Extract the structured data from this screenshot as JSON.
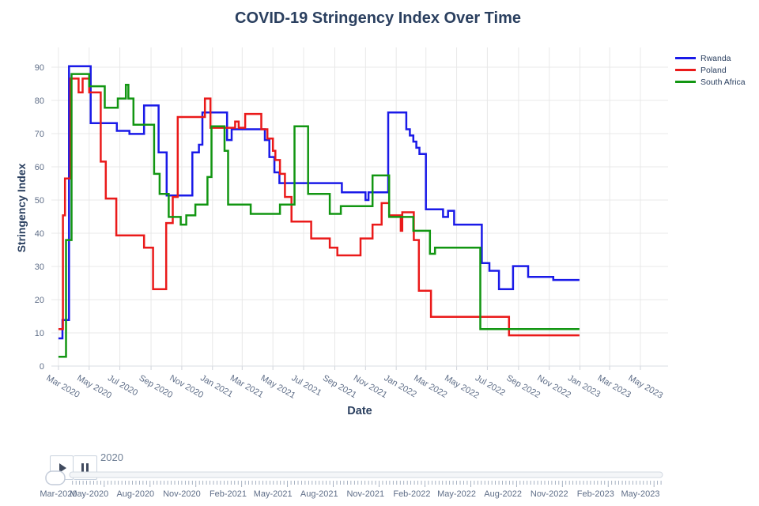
{
  "chart_data": {
    "type": "line",
    "line_shape": "step-after",
    "title": "COVID-19 Stringency Index Over Time",
    "xlabel": "Date",
    "ylabel": "Stringency Index",
    "x_range": [
      "2020-02-16",
      "2023-06-25"
    ],
    "ylim": [
      0,
      95
    ],
    "y_ticks": [
      0,
      10,
      20,
      30,
      40,
      50,
      60,
      70,
      80,
      90
    ],
    "x_tick_labels": [
      "Mar 2020",
      "May 2020",
      "Jul 2020",
      "Sep 2020",
      "Nov 2020",
      "Jan 2021",
      "Mar 2021",
      "May 2021",
      "Jul 2021",
      "Sep 2021",
      "Nov 2021",
      "Jan 2022",
      "Mar 2022",
      "May 2022",
      "Jul 2022",
      "Sep 2022",
      "Nov 2022",
      "Jan 2023",
      "Mar 2023",
      "May 2023"
    ],
    "grid": true,
    "legend_position": "top-right",
    "series": [
      {
        "name": "Rwanda",
        "color": "#1a1ae8",
        "points": [
          [
            "2020-03-01",
            8.33
          ],
          [
            "2020-03-09",
            13.89
          ],
          [
            "2020-03-22",
            90.28
          ],
          [
            "2020-05-04",
            73.15
          ],
          [
            "2020-06-25",
            70.83
          ],
          [
            "2020-07-20",
            69.91
          ],
          [
            "2020-08-18",
            78.47
          ],
          [
            "2020-09-16",
            64.35
          ],
          [
            "2020-10-02",
            51.39
          ],
          [
            "2020-11-22",
            64.35
          ],
          [
            "2020-12-05",
            66.67
          ],
          [
            "2020-12-12",
            76.39
          ],
          [
            "2021-01-30",
            68.06
          ],
          [
            "2021-02-08",
            71.3
          ],
          [
            "2021-04-15",
            68.06
          ],
          [
            "2021-04-24",
            62.96
          ],
          [
            "2021-05-04",
            58.33
          ],
          [
            "2021-05-14",
            55.09
          ],
          [
            "2021-09-15",
            52.31
          ],
          [
            "2021-11-01",
            50.0
          ],
          [
            "2021-11-07",
            52.31
          ],
          [
            "2021-12-16",
            76.39
          ],
          [
            "2022-01-21",
            71.3
          ],
          [
            "2022-01-28",
            69.44
          ],
          [
            "2022-02-04",
            67.59
          ],
          [
            "2022-02-10",
            65.74
          ],
          [
            "2022-02-16",
            63.89
          ],
          [
            "2022-03-01",
            47.22
          ],
          [
            "2022-04-04",
            44.91
          ],
          [
            "2022-04-14",
            46.76
          ],
          [
            "2022-04-26",
            42.59
          ],
          [
            "2022-06-20",
            31.02
          ],
          [
            "2022-07-05",
            28.7
          ],
          [
            "2022-07-24",
            23.15
          ],
          [
            "2022-08-21",
            30.09
          ],
          [
            "2022-09-20",
            26.85
          ],
          [
            "2022-11-09",
            25.93
          ],
          [
            "2022-12-31",
            25.93
          ]
        ]
      },
      {
        "name": "Poland",
        "color": "#ea1a1a",
        "points": [
          [
            "2020-03-01",
            11.11
          ],
          [
            "2020-03-10",
            45.37
          ],
          [
            "2020-03-14",
            56.48
          ],
          [
            "2020-03-25",
            86.57
          ],
          [
            "2020-04-10",
            82.41
          ],
          [
            "2020-04-18",
            86.57
          ],
          [
            "2020-05-01",
            82.41
          ],
          [
            "2020-05-24",
            61.57
          ],
          [
            "2020-06-03",
            50.46
          ],
          [
            "2020-06-24",
            39.35
          ],
          [
            "2020-08-18",
            35.65
          ],
          [
            "2020-09-05",
            23.15
          ],
          [
            "2020-10-01",
            43.06
          ],
          [
            "2020-10-14",
            50.93
          ],
          [
            "2020-10-24",
            75.0
          ],
          [
            "2020-12-17",
            80.56
          ],
          [
            "2020-12-28",
            71.76
          ],
          [
            "2021-02-15",
            73.61
          ],
          [
            "2021-02-22",
            71.76
          ],
          [
            "2021-03-07",
            75.93
          ],
          [
            "2021-04-08",
            71.3
          ],
          [
            "2021-04-20",
            68.52
          ],
          [
            "2021-05-01",
            64.81
          ],
          [
            "2021-05-06",
            62.04
          ],
          [
            "2021-05-15",
            57.87
          ],
          [
            "2021-05-25",
            50.93
          ],
          [
            "2021-06-07",
            43.52
          ],
          [
            "2021-07-16",
            38.43
          ],
          [
            "2021-08-22",
            35.65
          ],
          [
            "2021-09-06",
            33.33
          ],
          [
            "2021-10-22",
            38.43
          ],
          [
            "2021-11-15",
            42.59
          ],
          [
            "2021-12-03",
            49.07
          ],
          [
            "2021-12-18",
            45.37
          ],
          [
            "2022-01-10",
            40.74
          ],
          [
            "2022-01-13",
            46.3
          ],
          [
            "2022-02-05",
            37.96
          ],
          [
            "2022-02-15",
            22.69
          ],
          [
            "2022-03-11",
            14.81
          ],
          [
            "2022-08-13",
            9.26
          ],
          [
            "2022-12-31",
            9.26
          ]
        ]
      },
      {
        "name": "South Africa",
        "color": "#129612",
        "points": [
          [
            "2020-03-01",
            2.78
          ],
          [
            "2020-03-16",
            37.96
          ],
          [
            "2020-03-27",
            87.96
          ],
          [
            "2020-05-01",
            84.26
          ],
          [
            "2020-06-01",
            77.78
          ],
          [
            "2020-06-27",
            80.56
          ],
          [
            "2020-07-13",
            84.72
          ],
          [
            "2020-07-18",
            80.56
          ],
          [
            "2020-07-28",
            72.69
          ],
          [
            "2020-09-07",
            57.87
          ],
          [
            "2020-09-18",
            51.85
          ],
          [
            "2020-10-06",
            44.91
          ],
          [
            "2020-10-30",
            42.59
          ],
          [
            "2020-11-10",
            45.37
          ],
          [
            "2020-11-28",
            48.61
          ],
          [
            "2020-12-22",
            56.94
          ],
          [
            "2020-12-30",
            72.22
          ],
          [
            "2021-01-25",
            64.81
          ],
          [
            "2021-02-01",
            48.61
          ],
          [
            "2021-03-18",
            45.83
          ],
          [
            "2021-05-15",
            48.61
          ],
          [
            "2021-06-13",
            72.22
          ],
          [
            "2021-07-10",
            51.85
          ],
          [
            "2021-08-22",
            45.83
          ],
          [
            "2021-09-13",
            48.15
          ],
          [
            "2021-11-15",
            57.41
          ],
          [
            "2021-12-18",
            44.91
          ],
          [
            "2022-02-04",
            40.74
          ],
          [
            "2022-03-09",
            33.8
          ],
          [
            "2022-03-19",
            35.65
          ],
          [
            "2022-06-17",
            11.11
          ],
          [
            "2022-12-31",
            11.11
          ]
        ]
      }
    ]
  },
  "slider": {
    "current_value": "2020",
    "tick_labels": [
      "Mar-2020",
      "May-2020",
      "Aug-2020",
      "Nov-2020",
      "Feb-2021",
      "May-2021",
      "Aug-2021",
      "Nov-2021",
      "Feb-2022",
      "May-2022",
      "Aug-2022",
      "Nov-2022",
      "Feb-2023",
      "May-2023"
    ]
  },
  "icons": {
    "play": "play-icon",
    "pause": "pause-icon"
  },
  "colors": {
    "title_text": "#2a3f5f",
    "tick_text": "#5f6e88",
    "gridline": "#e8e8e8"
  }
}
